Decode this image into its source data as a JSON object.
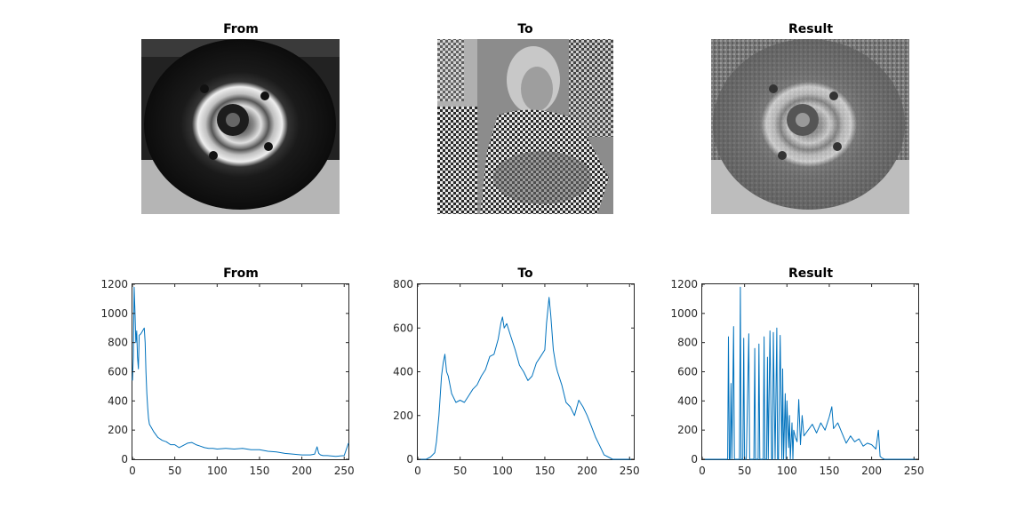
{
  "images": [
    {
      "title": "From",
      "picture": "tyre-wheel-grayscale"
    },
    {
      "title": "To",
      "picture": "woman-in-headscarf-grayscale"
    },
    {
      "title": "Result",
      "picture": "tyre-wheel-matched-grayscale"
    }
  ],
  "colors": {
    "series": "#0072BD",
    "axis": "#262626",
    "background": "#ffffff"
  },
  "chart_data": [
    {
      "type": "line",
      "title": "From",
      "xlim": [
        0,
        255
      ],
      "ylim": [
        0,
        1200
      ],
      "xticks": [
        0,
        50,
        100,
        150,
        200,
        250
      ],
      "yticks": [
        0,
        200,
        400,
        600,
        800,
        1000,
        1200
      ],
      "grid": false,
      "x": [
        0,
        1,
        2,
        3,
        4,
        5,
        6,
        7,
        8,
        10,
        12,
        14,
        15,
        16,
        17,
        18,
        19,
        20,
        22,
        25,
        30,
        35,
        40,
        45,
        50,
        55,
        60,
        65,
        70,
        75,
        80,
        85,
        90,
        95,
        100,
        110,
        120,
        130,
        140,
        150,
        160,
        170,
        180,
        190,
        200,
        210,
        215,
        218,
        220,
        222,
        225,
        230,
        240,
        250,
        255
      ],
      "y": [
        540,
        700,
        1180,
        1000,
        800,
        880,
        700,
        620,
        850,
        860,
        880,
        900,
        800,
        600,
        450,
        350,
        280,
        240,
        220,
        190,
        150,
        130,
        120,
        100,
        100,
        80,
        95,
        110,
        115,
        100,
        90,
        80,
        75,
        75,
        70,
        75,
        70,
        75,
        65,
        65,
        55,
        50,
        40,
        35,
        30,
        30,
        35,
        85,
        40,
        30,
        25,
        25,
        20,
        25,
        110
      ]
    },
    {
      "type": "line",
      "title": "To",
      "xlim": [
        0,
        255
      ],
      "ylim": [
        0,
        800
      ],
      "xticks": [
        0,
        50,
        100,
        150,
        200,
        250
      ],
      "yticks": [
        0,
        200,
        400,
        600,
        800
      ],
      "grid": false,
      "x": [
        0,
        10,
        15,
        20,
        22,
        25,
        28,
        30,
        32,
        34,
        36,
        38,
        40,
        45,
        50,
        55,
        60,
        65,
        70,
        75,
        80,
        85,
        90,
        95,
        98,
        100,
        102,
        105,
        110,
        115,
        120,
        125,
        130,
        135,
        140,
        145,
        150,
        152,
        155,
        157,
        160,
        163,
        165,
        170,
        175,
        180,
        185,
        190,
        195,
        200,
        205,
        210,
        215,
        220,
        225,
        230,
        240,
        255
      ],
      "y": [
        0,
        0,
        10,
        30,
        80,
        200,
        380,
        440,
        480,
        400,
        380,
        340,
        300,
        260,
        270,
        260,
        290,
        320,
        340,
        380,
        410,
        470,
        480,
        550,
        620,
        650,
        600,
        620,
        560,
        500,
        430,
        400,
        360,
        380,
        440,
        470,
        500,
        620,
        740,
        660,
        500,
        430,
        400,
        340,
        260,
        240,
        200,
        270,
        240,
        200,
        150,
        100,
        60,
        20,
        10,
        0,
        0,
        0
      ]
    },
    {
      "type": "line",
      "title": "Result",
      "xlim": [
        0,
        255
      ],
      "ylim": [
        0,
        1200
      ],
      "xticks": [
        0,
        50,
        100,
        150,
        200,
        250
      ],
      "yticks": [
        0,
        200,
        400,
        600,
        800,
        1000,
        1200
      ],
      "grid": false,
      "x": [
        0,
        30,
        31,
        32,
        33,
        34,
        35,
        37,
        38,
        39,
        44,
        45,
        46,
        48,
        49,
        50,
        52,
        55,
        56,
        57,
        61,
        62,
        63,
        66,
        67,
        68,
        70,
        72,
        73,
        74,
        76,
        77,
        78,
        80,
        82,
        83,
        84,
        86,
        88,
        89,
        90,
        92,
        94,
        95,
        96,
        98,
        99,
        100,
        102,
        103,
        104,
        106,
        107,
        108,
        110,
        112,
        114,
        116,
        118,
        120,
        125,
        130,
        135,
        140,
        145,
        150,
        153,
        155,
        160,
        165,
        170,
        175,
        180,
        185,
        190,
        195,
        200,
        205,
        208,
        210,
        212,
        215,
        220,
        255
      ],
      "y": [
        0,
        0,
        840,
        0,
        0,
        520,
        0,
        910,
        0,
        0,
        0,
        1180,
        0,
        0,
        830,
        0,
        0,
        860,
        0,
        0,
        0,
        760,
        0,
        0,
        790,
        0,
        0,
        0,
        840,
        0,
        0,
        700,
        0,
        880,
        0,
        0,
        870,
        0,
        900,
        0,
        0,
        850,
        0,
        620,
        0,
        450,
        0,
        400,
        80,
        300,
        0,
        250,
        0,
        200,
        150,
        120,
        410,
        100,
        300,
        160,
        200,
        240,
        180,
        250,
        200,
        290,
        360,
        210,
        250,
        180,
        110,
        160,
        120,
        140,
        90,
        110,
        100,
        70,
        200,
        20,
        10,
        0,
        0,
        0
      ]
    }
  ]
}
